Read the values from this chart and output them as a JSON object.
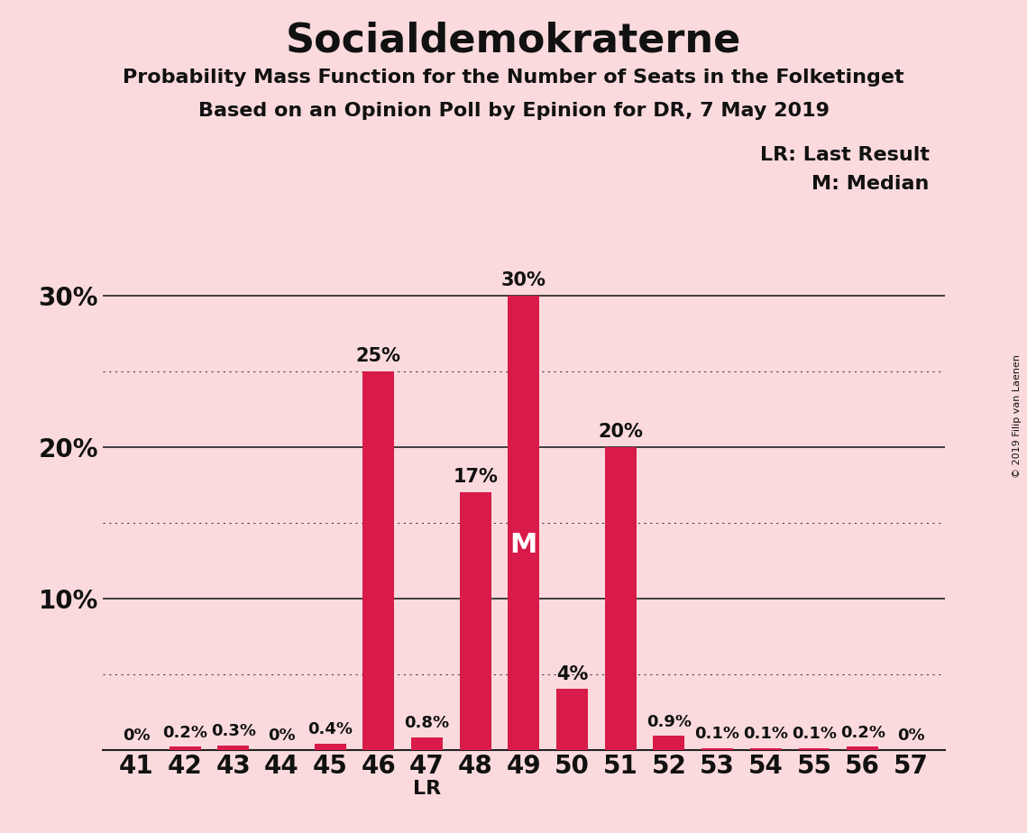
{
  "title": "Socialdemokraterne",
  "subtitle1": "Probability Mass Function for the Number of Seats in the Folketinget",
  "subtitle2": "Based on an Opinion Poll by Epinion for DR, 7 May 2019",
  "copyright": "© 2019 Filip van Laenen",
  "categories": [
    41,
    42,
    43,
    44,
    45,
    46,
    47,
    48,
    49,
    50,
    51,
    52,
    53,
    54,
    55,
    56,
    57
  ],
  "values": [
    0.0,
    0.2,
    0.3,
    0.0,
    0.4,
    25.0,
    0.8,
    17.0,
    30.0,
    4.0,
    20.0,
    0.9,
    0.1,
    0.1,
    0.1,
    0.2,
    0.0
  ],
  "bar_color": "#D81B4A",
  "background_color": "#FADADD",
  "text_color": "#111111",
  "last_result_seat": 47,
  "median_seat": 49,
  "ylim": [
    0,
    33
  ],
  "legend_lr": "LR: Last Result",
  "legend_m": "M: Median",
  "label_fontsize_small": 13,
  "label_fontsize_large": 15,
  "title_fontsize": 32,
  "subtitle_fontsize": 16,
  "tick_fontsize": 20
}
